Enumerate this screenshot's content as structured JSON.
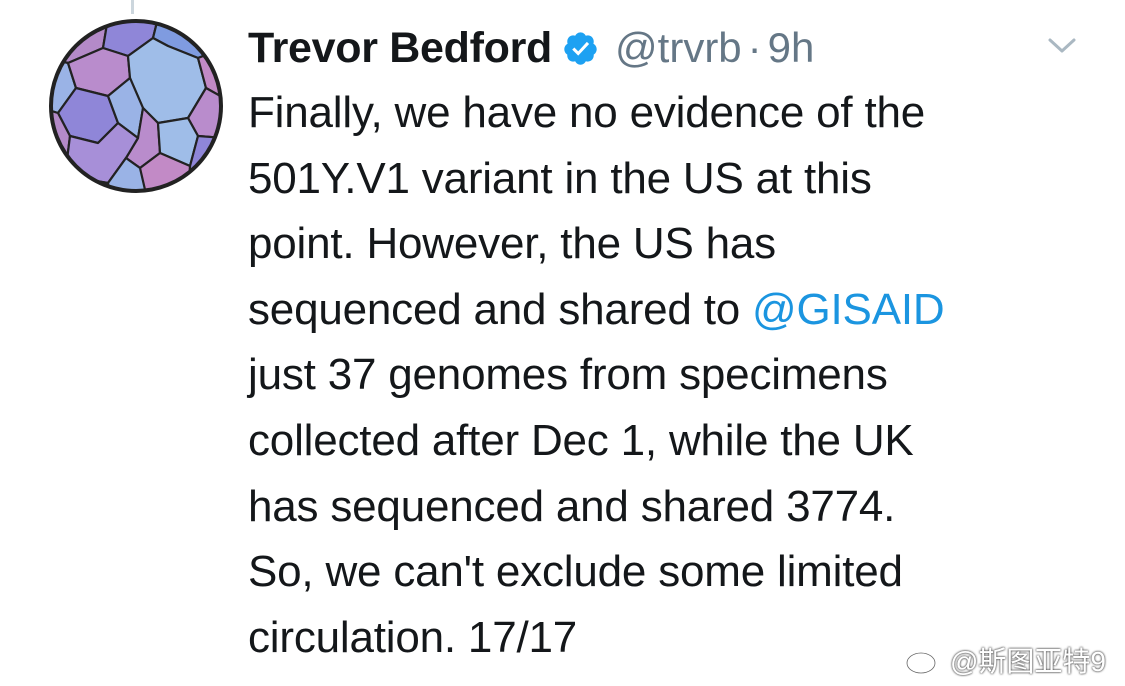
{
  "tweet": {
    "author": {
      "display_name": "Trevor Bedford",
      "handle": "@trvrb",
      "verified": true,
      "avatar_icon": "stained-glass-avatar"
    },
    "separator": "·",
    "time": "9h",
    "menu_icon": "chevron-down-icon",
    "text_lines": [
      [
        {
          "text": "Finally, we have no evidence of the"
        }
      ],
      [
        {
          "text": "501Y.V1 variant in the US at this"
        }
      ],
      [
        {
          "text": "point. However, the US has"
        }
      ],
      [
        {
          "text": "sequenced and shared to "
        },
        {
          "mention": "@GISAID"
        }
      ],
      [
        {
          "text": "just 37 genomes from specimens"
        }
      ],
      [
        {
          "text": "collected after Dec 1, while the UK"
        }
      ],
      [
        {
          "text": "has sequenced and shared 3774."
        }
      ],
      [
        {
          "text": "So, we can't exclude some limited"
        }
      ],
      [
        {
          "text": "circulation. 17/17"
        }
      ]
    ]
  },
  "watermark": {
    "logo": "weibo-logo",
    "text": "@斯图亚特9"
  },
  "colors": {
    "text": "#14171a",
    "secondary": "#657786",
    "link": "#1b95e0",
    "verified": "#1da1f2"
  }
}
